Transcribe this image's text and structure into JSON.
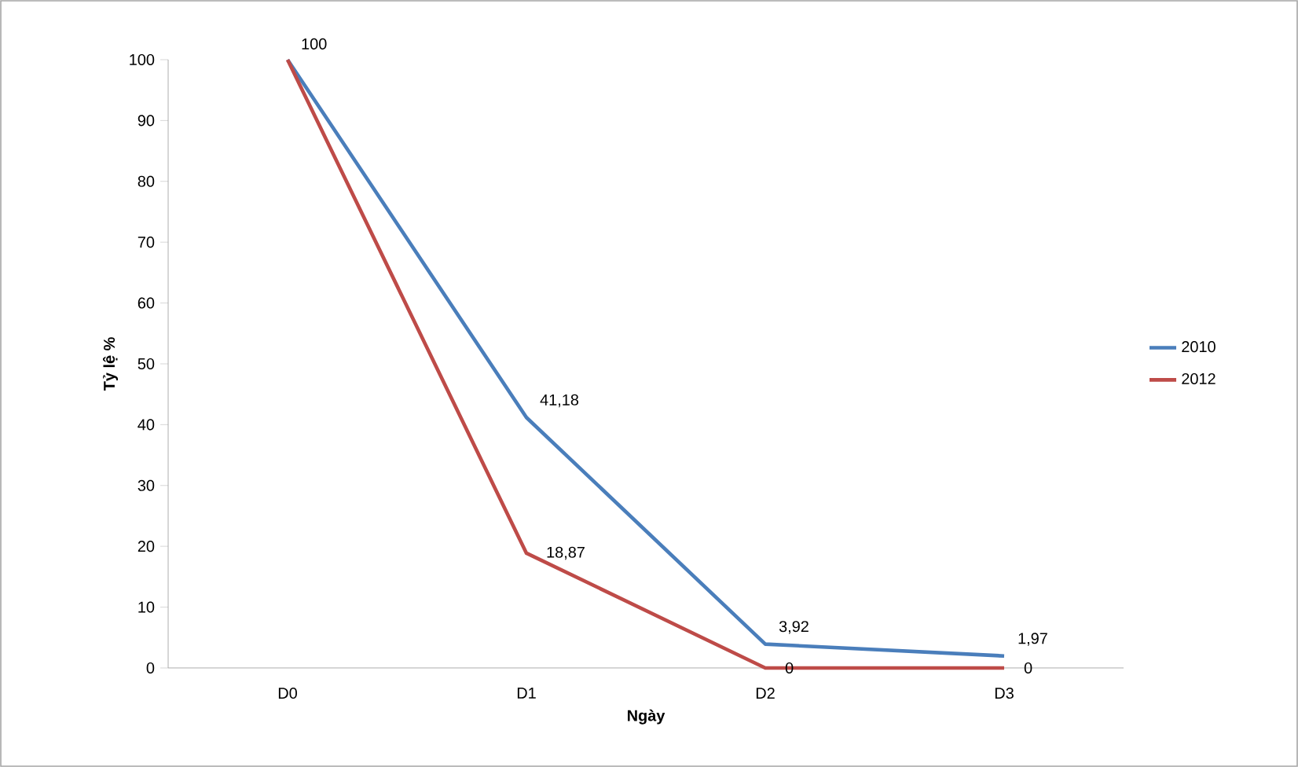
{
  "chart_data": {
    "type": "line",
    "xlabel": "Ngày",
    "ylabel": "Tỷ lệ %",
    "categories": [
      "D0",
      "D1",
      "D2",
      "D3"
    ],
    "ylim": [
      0,
      100
    ],
    "yticks": [
      0,
      10,
      20,
      30,
      40,
      50,
      60,
      70,
      80,
      90,
      100
    ],
    "grid": false,
    "legend": "right",
    "marker": "none",
    "line_style": "solid",
    "series": [
      {
        "name": "2010",
        "color": "#4a7ebb",
        "values": [
          100,
          41.18,
          3.92,
          1.97
        ],
        "value_labels": [
          "100",
          "41,18",
          "3,92",
          "1,97"
        ]
      },
      {
        "name": "2012",
        "color": "#be4b48",
        "values": [
          100,
          18.87,
          0,
          0
        ],
        "value_labels": [
          null,
          "18,87",
          "0",
          "0"
        ]
      }
    ]
  }
}
